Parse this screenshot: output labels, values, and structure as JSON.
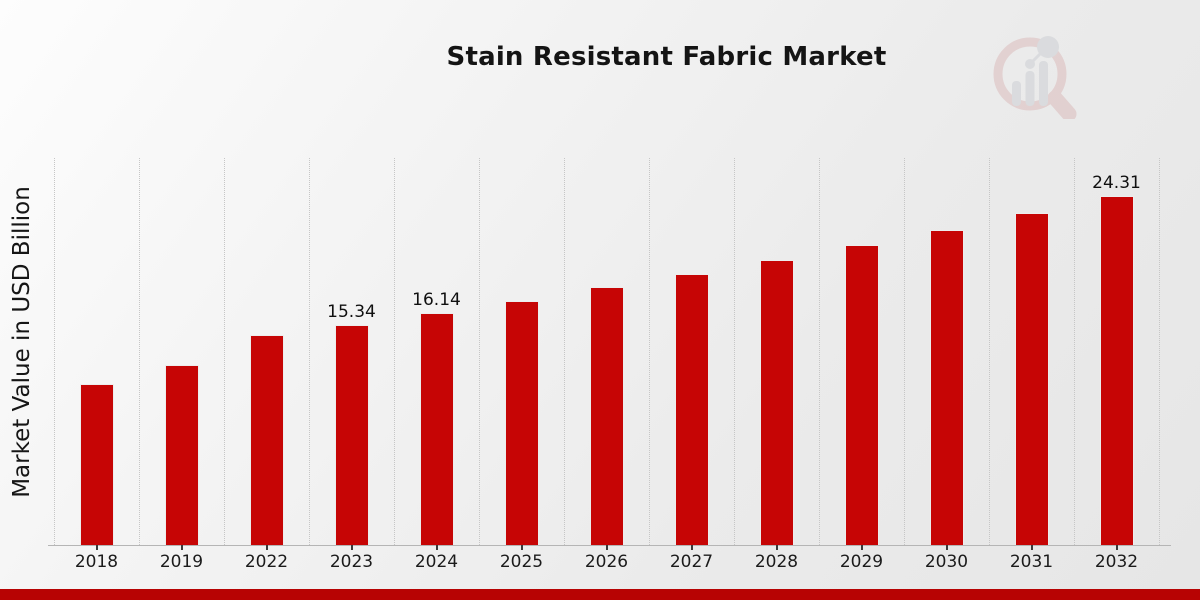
{
  "title": "Stain Resistant Fabric Market",
  "accent": {
    "bar_red": "#c60505",
    "strip_red": "#b70303"
  },
  "watermark": {
    "icon": "magnifier-bar-chart-logo"
  },
  "chart_data": {
    "type": "bar",
    "title": "Stain Resistant Fabric Market",
    "xlabel": "",
    "ylabel": "Market Value in USD Billion",
    "categories": [
      "2018",
      "2019",
      "2022",
      "2023",
      "2024",
      "2025",
      "2026",
      "2027",
      "2028",
      "2029",
      "2030",
      "2031",
      "2032"
    ],
    "values": [
      11.2,
      12.5,
      14.6,
      15.34,
      16.14,
      17.0,
      17.95,
      18.85,
      19.8,
      20.9,
      21.95,
      23.1,
      24.31
    ],
    "data_labels": [
      "",
      "",
      "",
      "15.34",
      "16.14",
      "",
      "",
      "",
      "",
      "",
      "",
      "",
      "24.31"
    ],
    "ylim": [
      0,
      26.93
    ],
    "grid": "vertical-dotted",
    "bar_color": "#c60505",
    "legend": "none"
  }
}
